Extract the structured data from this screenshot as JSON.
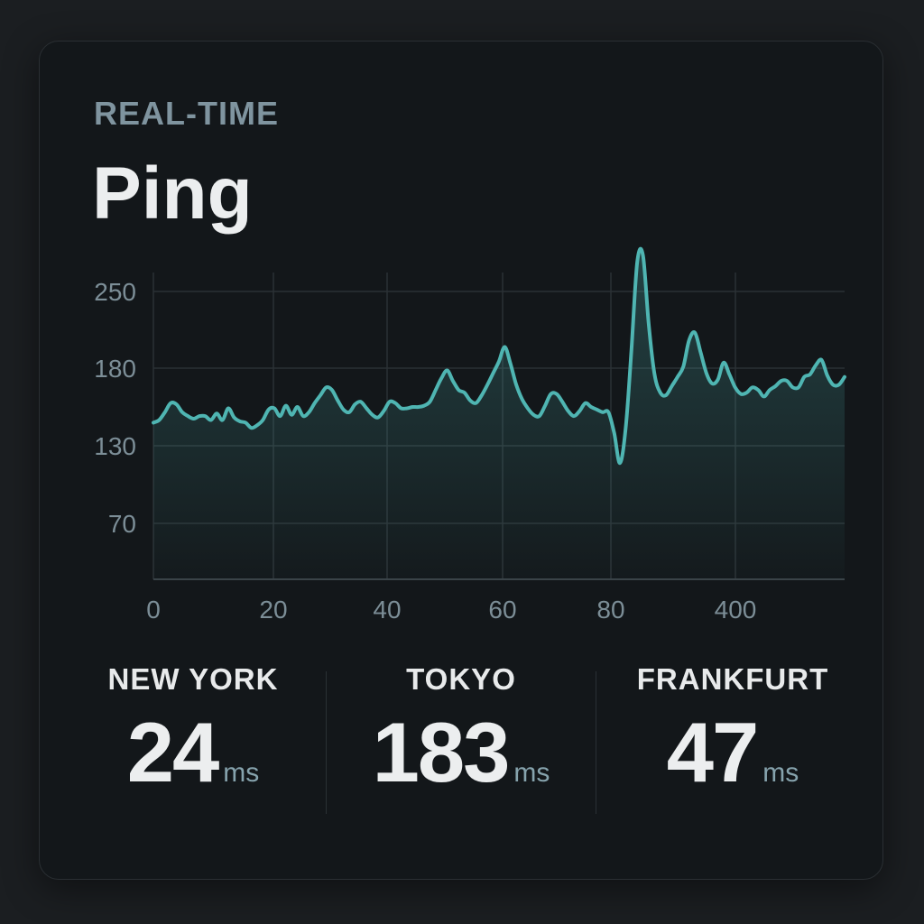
{
  "header": {
    "eyebrow": "REAL-TIME",
    "title": "Ping"
  },
  "colors": {
    "line": "#4fb5b2",
    "grid": "#2b3135",
    "tick": "#7c8e97"
  },
  "chart_data": {
    "type": "line",
    "title": "",
    "xlabel": "",
    "ylabel": "",
    "x_tick_labels": [
      "0",
      "20",
      "40",
      "60",
      "80",
      "400"
    ],
    "y_tick_labels": [
      "250",
      "180",
      "130",
      "70"
    ],
    "ylim": [
      15,
      250
    ],
    "grid": true,
    "series": [
      {
        "values": [
          135,
          137,
          143,
          150,
          149,
          143,
          140,
          138,
          140,
          140,
          137,
          142,
          137,
          146,
          139,
          136,
          135,
          131,
          133,
          137,
          145,
          146,
          140,
          148,
          141,
          147,
          140,
          143,
          150,
          156,
          162,
          160,
          152,
          145,
          143,
          149,
          151,
          146,
          141,
          139,
          144,
          151,
          150,
          146,
          146,
          147,
          147,
          148,
          151,
          160,
          169,
          175,
          167,
          160,
          158,
          152,
          150,
          156,
          164,
          173,
          182,
          193,
          180,
          164,
          153,
          146,
          141,
          140,
          148,
          157,
          157,
          151,
          144,
          140,
          144,
          150,
          147,
          145,
          143,
          143,
          127,
          104,
          131,
          191,
          258,
          263,
          210,
          172,
          158,
          156,
          163,
          170,
          178,
          198,
          204,
          189,
          173,
          165,
          168,
          181,
          172,
          162,
          157,
          158,
          162,
          160,
          155,
          160,
          163,
          167,
          167,
          162,
          162,
          170,
          172,
          179,
          183,
          171,
          164,
          164,
          170
        ]
      }
    ]
  },
  "stats": [
    {
      "label": "NEW YORK",
      "value": "24",
      "unit": "ms"
    },
    {
      "label": "TOKYO",
      "value": "183",
      "unit": "ms"
    },
    {
      "label": "FRANKFURT",
      "value": "47",
      "unit": "ms"
    }
  ]
}
